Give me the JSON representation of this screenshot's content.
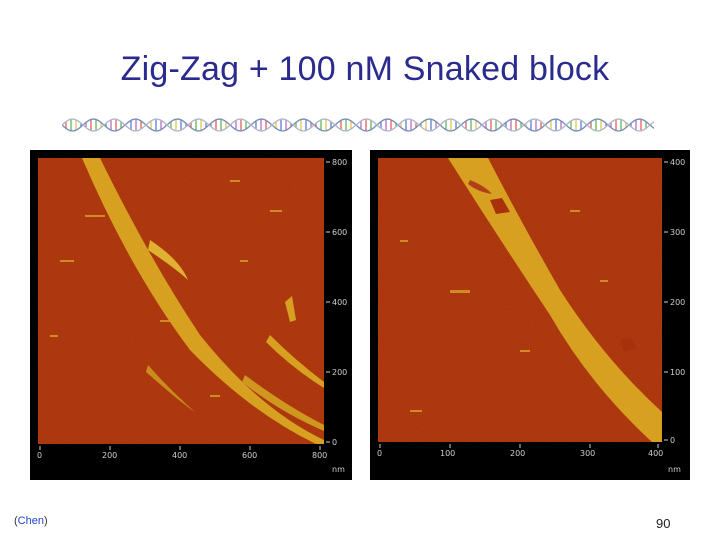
{
  "slide": {
    "title": "Zig-Zag + 100 nM Snaked block",
    "citation_open": "(",
    "citation_name": "Chen",
    "citation_close": ")",
    "page_number": "90"
  },
  "colors": {
    "title": "#2b2b8f",
    "afm_background": "#a8300a",
    "afm_feature": "#d8a020",
    "panel_frame": "#000000"
  },
  "images": [
    {
      "name": "afm-left",
      "x_ticks": [
        "0",
        "200",
        "400",
        "600",
        "800"
      ],
      "y_ticks": [
        "800",
        "600",
        "400",
        "200",
        "0"
      ],
      "unit": "nm"
    },
    {
      "name": "afm-right",
      "x_ticks": [
        "0",
        "100",
        "200",
        "300",
        "400"
      ],
      "y_ticks": [
        "400",
        "300",
        "200",
        "100",
        "0"
      ],
      "unit": "nm"
    }
  ]
}
